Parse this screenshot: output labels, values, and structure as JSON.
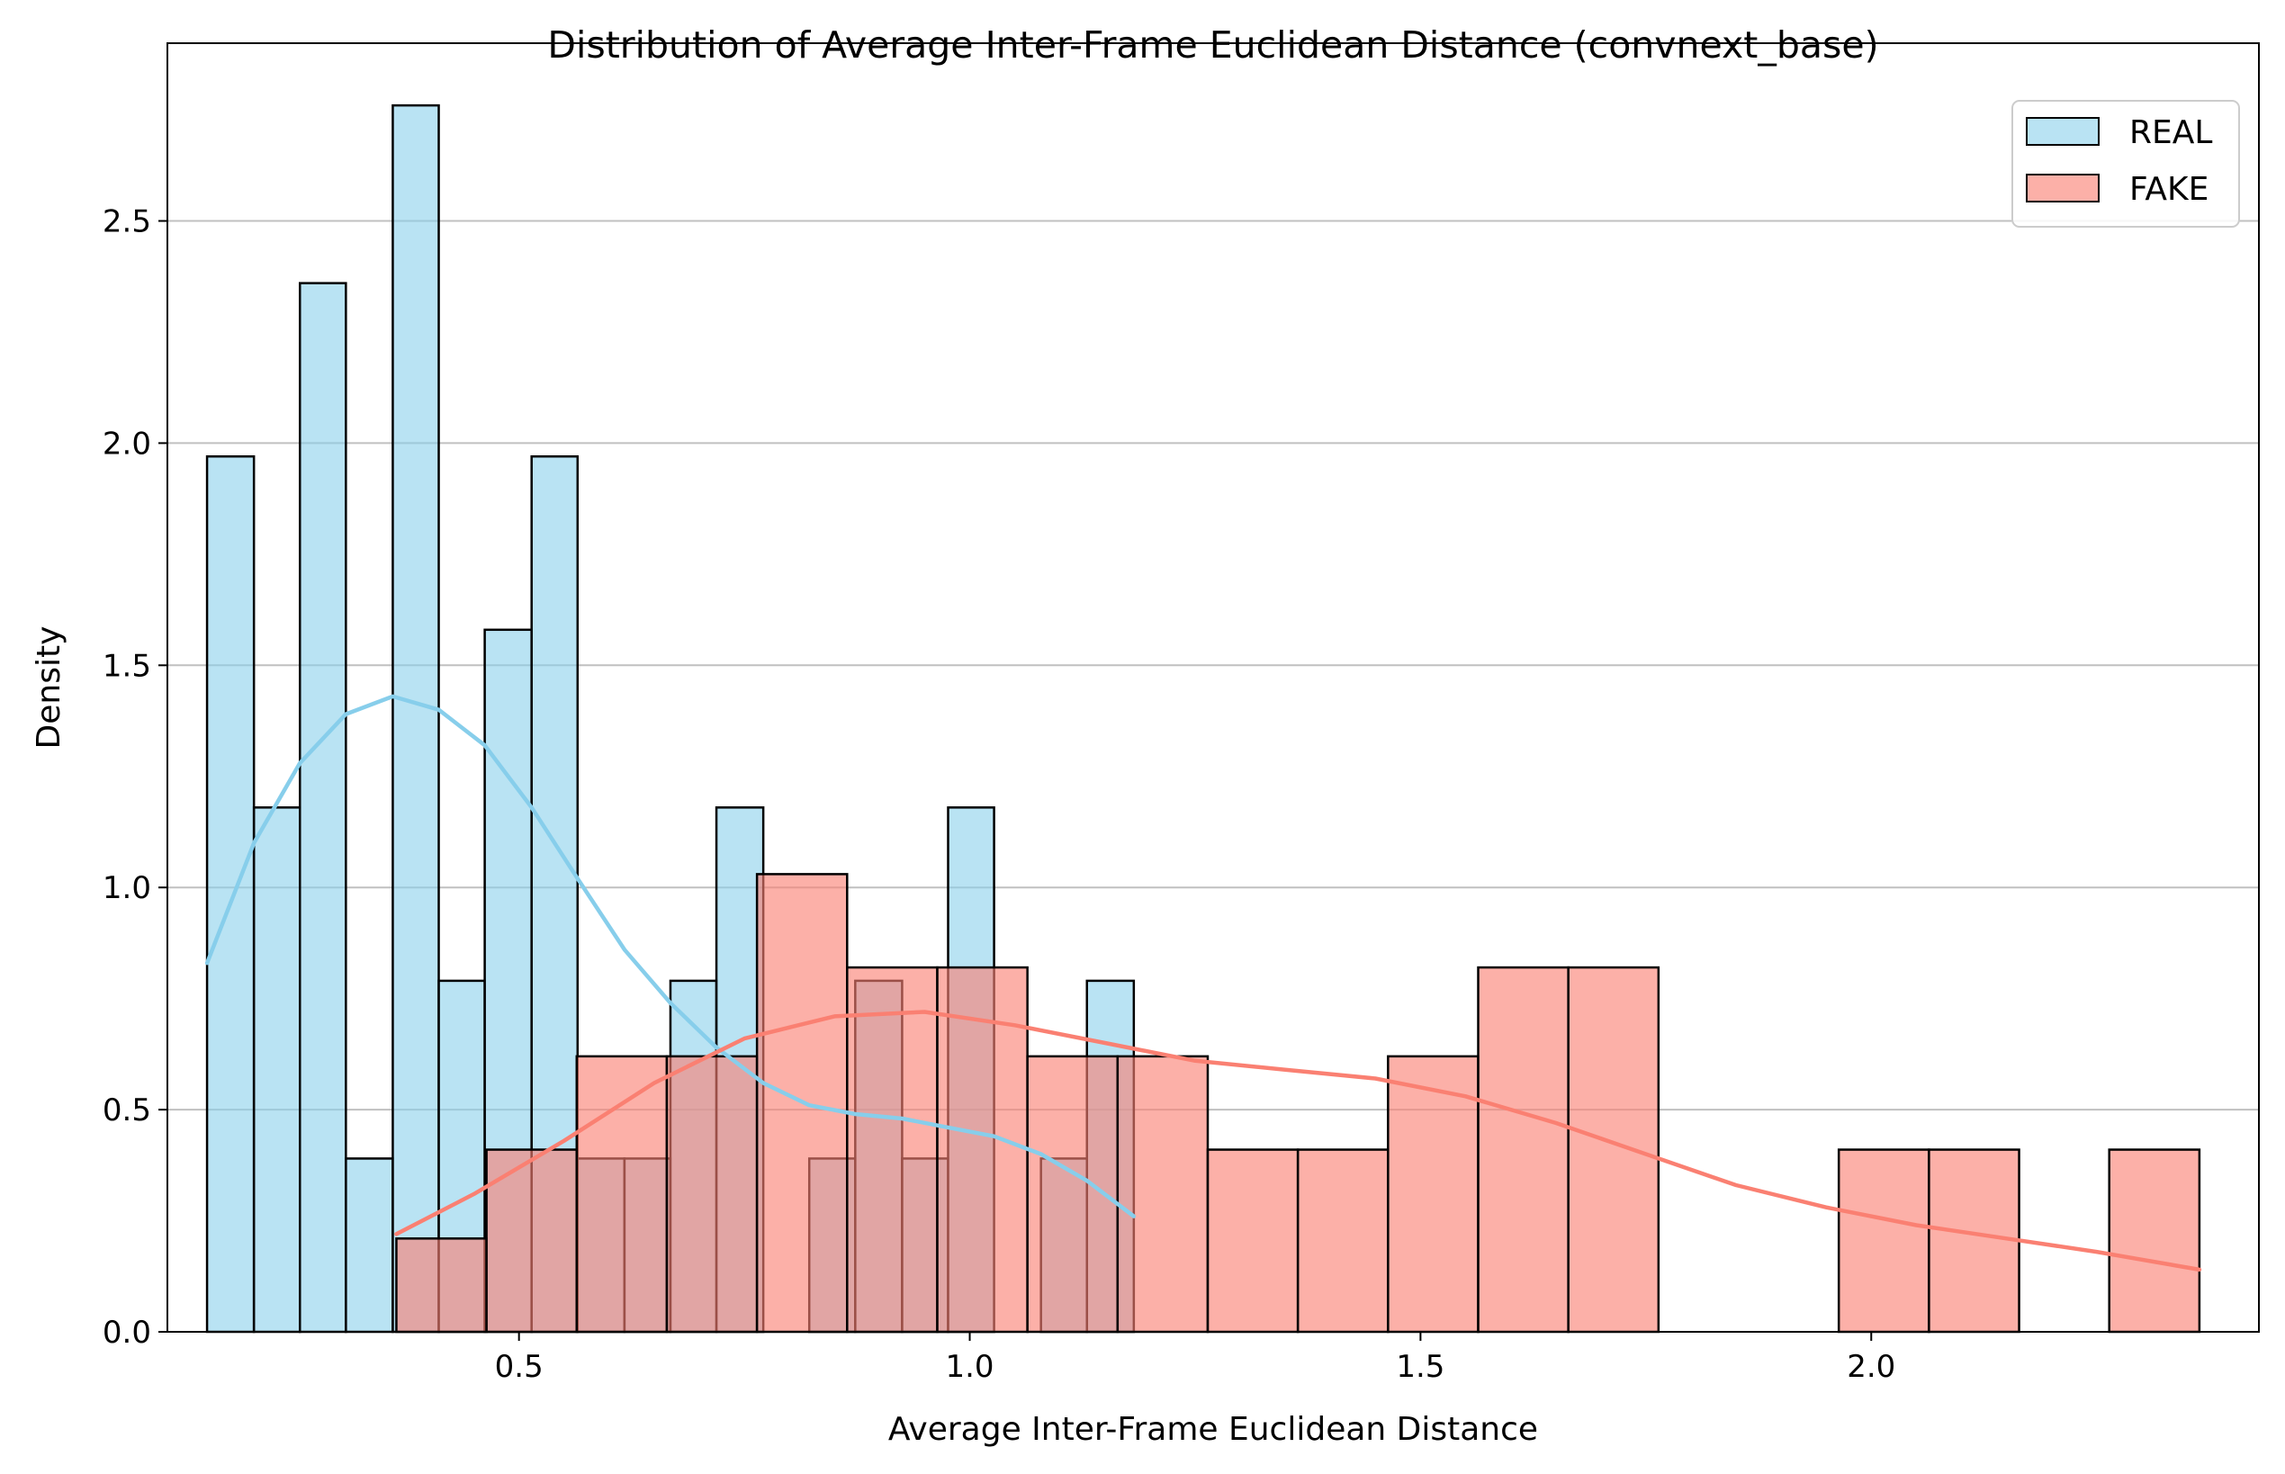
{
  "chart_data": {
    "type": "bar",
    "title": "Distribution of Average Inter-Frame Euclidean Distance (convnext_base)",
    "xlabel": "Average Inter-Frame Euclidean Distance",
    "ylabel": "Density",
    "xlim": [
      0.11,
      2.43
    ],
    "ylim": [
      0,
      2.9
    ],
    "x_ticks": [
      0.5,
      1.0,
      1.5,
      2.0
    ],
    "x_tick_labels": [
      "0.5",
      "1.0",
      "1.5",
      "2.0"
    ],
    "y_ticks": [
      0.0,
      0.5,
      1.0,
      1.5,
      2.0,
      2.5
    ],
    "y_tick_labels": [
      "0.0",
      "0.5",
      "1.0",
      "1.5",
      "2.0",
      "2.5"
    ],
    "grid": "y",
    "legend_position": "top-right",
    "series": [
      {
        "name": "REAL",
        "color": "#87ceeb",
        "edge_color": "#000000",
        "opacity": 0.58,
        "bins": [
          {
            "x0": 0.154,
            "x1": 0.206,
            "density": 1.97
          },
          {
            "x0": 0.206,
            "x1": 0.257,
            "density": 1.18
          },
          {
            "x0": 0.257,
            "x1": 0.308,
            "density": 2.36
          },
          {
            "x0": 0.308,
            "x1": 0.36,
            "density": 0.39
          },
          {
            "x0": 0.36,
            "x1": 0.411,
            "density": 2.76
          },
          {
            "x0": 0.411,
            "x1": 0.462,
            "density": 0.79
          },
          {
            "x0": 0.462,
            "x1": 0.514,
            "density": 1.58
          },
          {
            "x0": 0.514,
            "x1": 0.565,
            "density": 1.97
          },
          {
            "x0": 0.565,
            "x1": 0.617,
            "density": 0.39
          },
          {
            "x0": 0.617,
            "x1": 0.668,
            "density": 0.39
          },
          {
            "x0": 0.668,
            "x1": 0.719,
            "density": 0.79
          },
          {
            "x0": 0.719,
            "x1": 0.771,
            "density": 1.18
          },
          {
            "x0": 0.822,
            "x1": 0.873,
            "density": 0.39
          },
          {
            "x0": 0.873,
            "x1": 0.925,
            "density": 0.79
          },
          {
            "x0": 0.925,
            "x1": 0.976,
            "density": 0.39
          },
          {
            "x0": 0.976,
            "x1": 1.027,
            "density": 1.18
          },
          {
            "x0": 1.079,
            "x1": 1.13,
            "density": 0.39
          },
          {
            "x0": 1.13,
            "x1": 1.182,
            "density": 0.79
          }
        ],
        "kde": {
          "x": [
            0.154,
            0.206,
            0.257,
            0.308,
            0.36,
            0.411,
            0.462,
            0.514,
            0.565,
            0.617,
            0.668,
            0.719,
            0.771,
            0.822,
            0.873,
            0.925,
            0.976,
            1.027,
            1.079,
            1.13,
            1.182
          ],
          "y": [
            0.83,
            1.1,
            1.28,
            1.39,
            1.43,
            1.4,
            1.32,
            1.18,
            1.02,
            0.86,
            0.74,
            0.64,
            0.56,
            0.51,
            0.49,
            0.48,
            0.46,
            0.44,
            0.4,
            0.34,
            0.26
          ]
        }
      },
      {
        "name": "FAKE",
        "color": "#fa8072",
        "edge_color": "#000000",
        "opacity": 0.62,
        "bins": [
          {
            "x0": 0.364,
            "x1": 0.464,
            "density": 0.21
          },
          {
            "x0": 0.464,
            "x1": 0.564,
            "density": 0.41
          },
          {
            "x0": 0.564,
            "x1": 0.664,
            "density": 0.62
          },
          {
            "x0": 0.664,
            "x1": 0.764,
            "density": 0.62
          },
          {
            "x0": 0.764,
            "x1": 0.864,
            "density": 1.03
          },
          {
            "x0": 0.864,
            "x1": 0.964,
            "density": 0.82
          },
          {
            "x0": 0.964,
            "x1": 1.064,
            "density": 0.82
          },
          {
            "x0": 1.064,
            "x1": 1.164,
            "density": 0.62
          },
          {
            "x0": 1.164,
            "x1": 1.264,
            "density": 0.62
          },
          {
            "x0": 1.264,
            "x1": 1.364,
            "density": 0.41
          },
          {
            "x0": 1.364,
            "x1": 1.464,
            "density": 0.41
          },
          {
            "x0": 1.464,
            "x1": 1.564,
            "density": 0.62
          },
          {
            "x0": 1.564,
            "x1": 1.664,
            "density": 0.82
          },
          {
            "x0": 1.664,
            "x1": 1.764,
            "density": 0.82
          },
          {
            "x0": 1.964,
            "x1": 2.064,
            "density": 0.41
          },
          {
            "x0": 2.064,
            "x1": 2.164,
            "density": 0.41
          },
          {
            "x0": 2.264,
            "x1": 2.364,
            "density": 0.41
          }
        ],
        "kde": {
          "x": [
            0.364,
            0.45,
            0.55,
            0.65,
            0.75,
            0.85,
            0.95,
            1.05,
            1.15,
            1.25,
            1.35,
            1.45,
            1.55,
            1.65,
            1.75,
            1.85,
            1.95,
            2.05,
            2.15,
            2.25,
            2.364
          ],
          "y": [
            0.22,
            0.31,
            0.43,
            0.56,
            0.66,
            0.71,
            0.72,
            0.69,
            0.65,
            0.61,
            0.59,
            0.57,
            0.53,
            0.47,
            0.4,
            0.33,
            0.28,
            0.24,
            0.21,
            0.18,
            0.14
          ]
        }
      }
    ]
  }
}
